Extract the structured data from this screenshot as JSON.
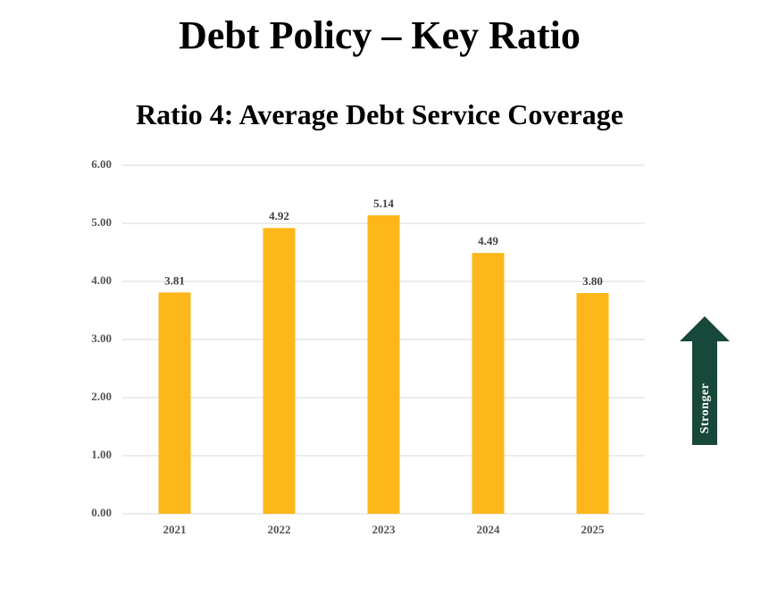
{
  "page": {
    "title": "Debt Policy – Key Ratio"
  },
  "indicator": {
    "label": "Stronger",
    "color": "#17483a",
    "icon": "up-arrow-icon"
  },
  "colors": {
    "bar": "#fdb71a",
    "grid": "#d9d9d9"
  },
  "chart_data": {
    "type": "bar",
    "title": "Ratio 4: Average Debt Service Coverage",
    "xlabel": "",
    "ylabel": "",
    "categories": [
      "2021",
      "2022",
      "2023",
      "2024",
      "2025"
    ],
    "values": [
      3.81,
      4.92,
      5.14,
      4.49,
      3.8
    ],
    "value_labels": [
      "3.81",
      "4.92",
      "5.14",
      "4.49",
      "3.80"
    ],
    "ylim": [
      0,
      6
    ],
    "yticks": [
      "0.00",
      "1.00",
      "2.00",
      "3.00",
      "4.00",
      "5.00",
      "6.00"
    ],
    "grid": true,
    "legend": "none"
  }
}
